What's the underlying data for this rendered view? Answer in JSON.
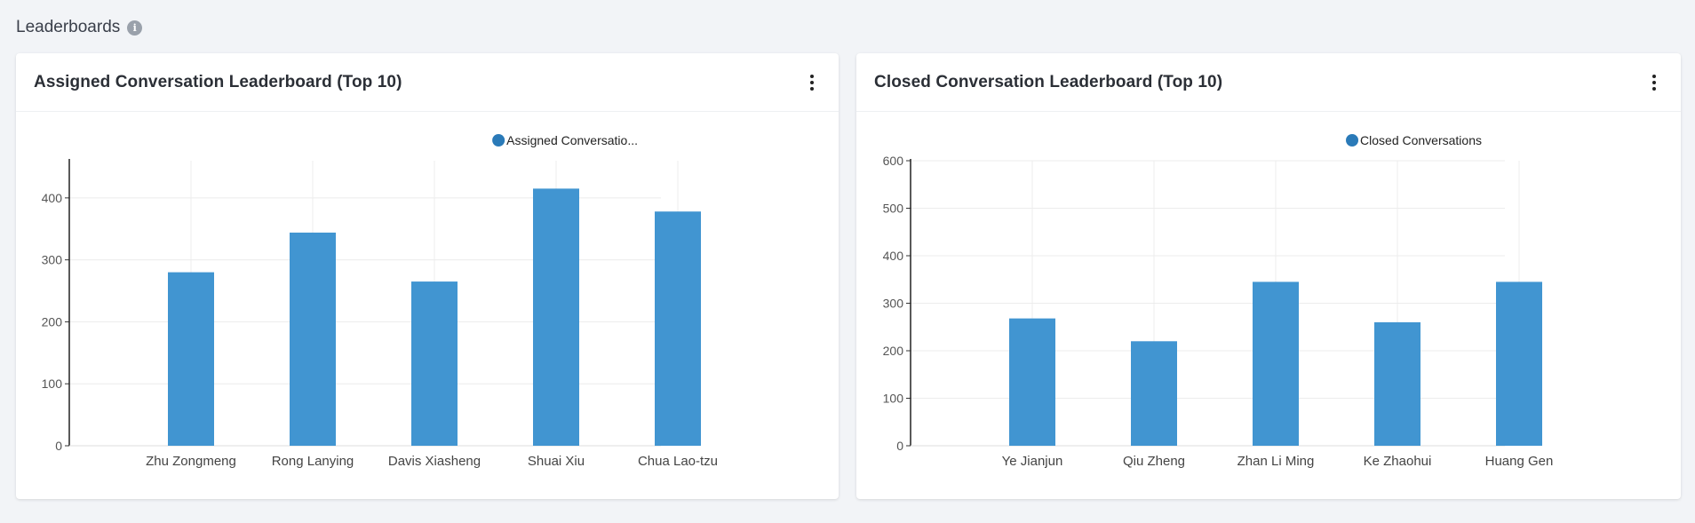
{
  "section": {
    "title": "Leaderboards",
    "info_icon": "info-icon"
  },
  "cards": [
    {
      "title": "Assigned Conversation Leaderboard (Top 10)",
      "menu_icon": "kebab-menu-icon"
    },
    {
      "title": "Closed Conversation Leaderboard (Top 10)",
      "menu_icon": "kebab-menu-icon"
    }
  ],
  "chart_data": [
    {
      "type": "bar",
      "categories": [
        "Zhu Zongmeng",
        "Rong Lanying",
        "Davis Xiasheng",
        "Shuai Xiu",
        "Chua Lao-tzu"
      ],
      "series": [
        {
          "name": "Assigned Conversatio...",
          "values": [
            280,
            344,
            265,
            415,
            378
          ]
        }
      ],
      "yticks": [
        0,
        100,
        200,
        300,
        400
      ],
      "ylim": [
        0,
        460
      ],
      "legend": "top-right",
      "grid": true,
      "bar_color": "#4195d1",
      "legend_color": "#2a7ab8"
    },
    {
      "type": "bar",
      "categories": [
        "Ye Jianjun",
        "Qiu Zheng",
        "Zhan Li Ming",
        "Ke Zhaohui",
        "Huang Gen"
      ],
      "series": [
        {
          "name": "Closed Conversations",
          "values": [
            268,
            220,
            345,
            260,
            345
          ]
        }
      ],
      "yticks": [
        0,
        100,
        200,
        300,
        400,
        500,
        600
      ],
      "ylim": [
        0,
        600
      ],
      "legend": "top-right",
      "grid": true,
      "bar_color": "#4195d1",
      "legend_color": "#2a7ab8"
    }
  ]
}
